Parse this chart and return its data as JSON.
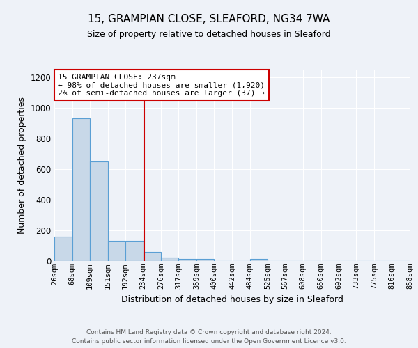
{
  "title1": "15, GRAMPIAN CLOSE, SLEAFORD, NG34 7WA",
  "title2": "Size of property relative to detached houses in Sleaford",
  "xlabel": "Distribution of detached houses by size in Sleaford",
  "ylabel": "Number of detached properties",
  "bar_edges": [
    26,
    68,
    109,
    151,
    192,
    234,
    276,
    317,
    359,
    400,
    442,
    484,
    525,
    567,
    608,
    650,
    692,
    733,
    775,
    816,
    858
  ],
  "bar_heights": [
    160,
    930,
    650,
    130,
    130,
    60,
    25,
    15,
    12,
    0,
    0,
    15,
    0,
    0,
    0,
    0,
    0,
    0,
    0,
    0
  ],
  "bar_color": "#c8d8e8",
  "bar_edge_color": "#5a9fd4",
  "vline_x": 237,
  "vline_color": "#cc0000",
  "annotation_text": "15 GRAMPIAN CLOSE: 237sqm\n← 98% of detached houses are smaller (1,920)\n2% of semi-detached houses are larger (37) →",
  "annotation_box_color": "#ffffff",
  "annotation_box_edge": "#cc0000",
  "ylim": [
    0,
    1250
  ],
  "yticks": [
    0,
    200,
    400,
    600,
    800,
    1000,
    1200
  ],
  "tick_labels": [
    "26sqm",
    "68sqm",
    "109sqm",
    "151sqm",
    "192sqm",
    "234sqm",
    "276sqm",
    "317sqm",
    "359sqm",
    "400sqm",
    "442sqm",
    "484sqm",
    "525sqm",
    "567sqm",
    "608sqm",
    "650sqm",
    "692sqm",
    "733sqm",
    "775sqm",
    "816sqm",
    "858sqm"
  ],
  "footer": "Contains HM Land Registry data © Crown copyright and database right 2024.\nContains public sector information licensed under the Open Government Licence v3.0.",
  "background_color": "#eef2f8",
  "grid_color": "#ffffff",
  "title1_fontsize": 11,
  "title2_fontsize": 9,
  "ylabel_fontsize": 9,
  "xlabel_fontsize": 9,
  "tick_fontsize": 7.5,
  "footer_fontsize": 6.5
}
